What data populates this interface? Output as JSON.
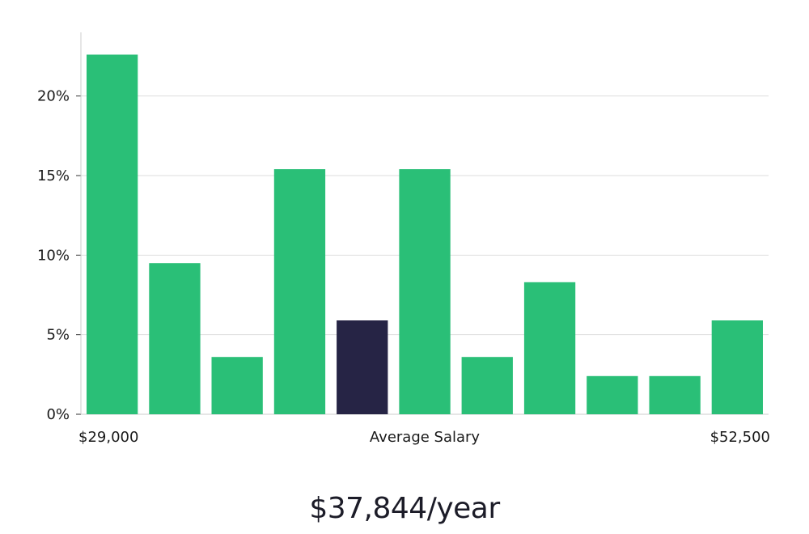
{
  "chart_data": {
    "type": "bar",
    "ylim": [
      0,
      24
    ],
    "y_ticks": [
      0,
      5,
      10,
      15,
      20
    ],
    "y_tick_labels": [
      "0%",
      "5%",
      "10%",
      "15%",
      "20%"
    ],
    "values": [
      22.6,
      9.5,
      3.6,
      15.4,
      5.9,
      15.4,
      3.6,
      8.3,
      2.4,
      2.4,
      5.9
    ],
    "highlight_index": 4,
    "x_min_label": "$29,000",
    "x_center_label": "Average Salary",
    "x_max_label": "$52,500",
    "grid": true,
    "colors": {
      "bar": "#2abf77",
      "highlight": "#262445",
      "grid": "#dddddd",
      "axis": "#cccccc"
    }
  },
  "salary": {
    "amount_text": "$37,844/year"
  }
}
